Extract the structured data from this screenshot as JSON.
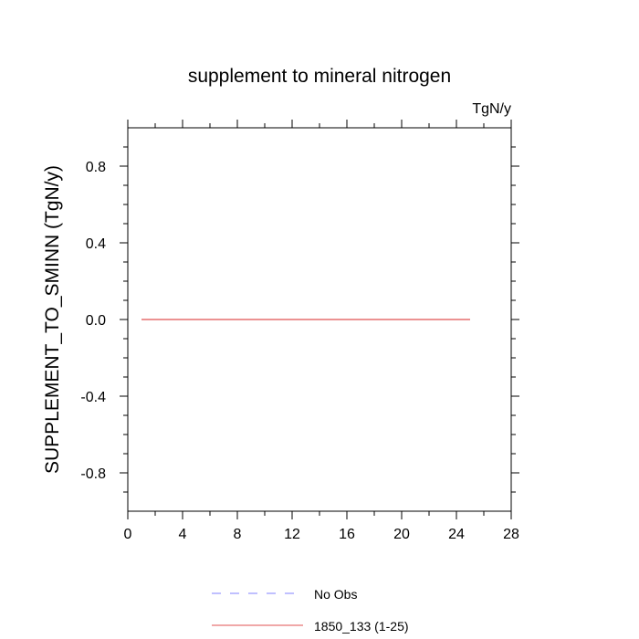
{
  "chart_data": {
    "type": "line",
    "title": "supplement to mineral nitrogen",
    "units_label": "TgN/y",
    "xlabel": "",
    "ylabel": "SUPPLEMENT_TO_SMINN  (TgN/y)",
    "xlim": [
      0,
      28
    ],
    "ylim": [
      -1,
      1
    ],
    "x_ticks": [
      0,
      4,
      8,
      12,
      16,
      20,
      24,
      28
    ],
    "x_minor_ticks": [
      2,
      6,
      10,
      14,
      18,
      22,
      26
    ],
    "y_ticks": [
      -0.8,
      -0.4,
      0.0,
      0.4,
      0.8
    ],
    "y_tick_labels": [
      "-0.8",
      "-0.4",
      "0.0",
      "0.4",
      "0.8"
    ],
    "y_minor_ticks": [
      -0.9,
      -0.7,
      -0.6,
      -0.5,
      -0.3,
      -0.2,
      -0.1,
      0.1,
      0.2,
      0.3,
      0.5,
      0.6,
      0.7,
      0.9
    ],
    "grid": false,
    "legend_position": "bottom-center",
    "series": [
      {
        "name": "No Obs",
        "color": "#8080ff",
        "dash": "dashed",
        "x": [],
        "y": []
      },
      {
        "name": "1850_133 (1-25)",
        "color": "#e05050",
        "dash": "solid",
        "x": [
          1,
          2,
          3,
          4,
          5,
          6,
          7,
          8,
          9,
          10,
          11,
          12,
          13,
          14,
          15,
          16,
          17,
          18,
          19,
          20,
          21,
          22,
          23,
          24,
          25
        ],
        "y": [
          0,
          0,
          0,
          0,
          0,
          0,
          0,
          0,
          0,
          0,
          0,
          0,
          0,
          0,
          0,
          0,
          0,
          0,
          0,
          0,
          0,
          0,
          0,
          0,
          0
        ]
      }
    ]
  }
}
